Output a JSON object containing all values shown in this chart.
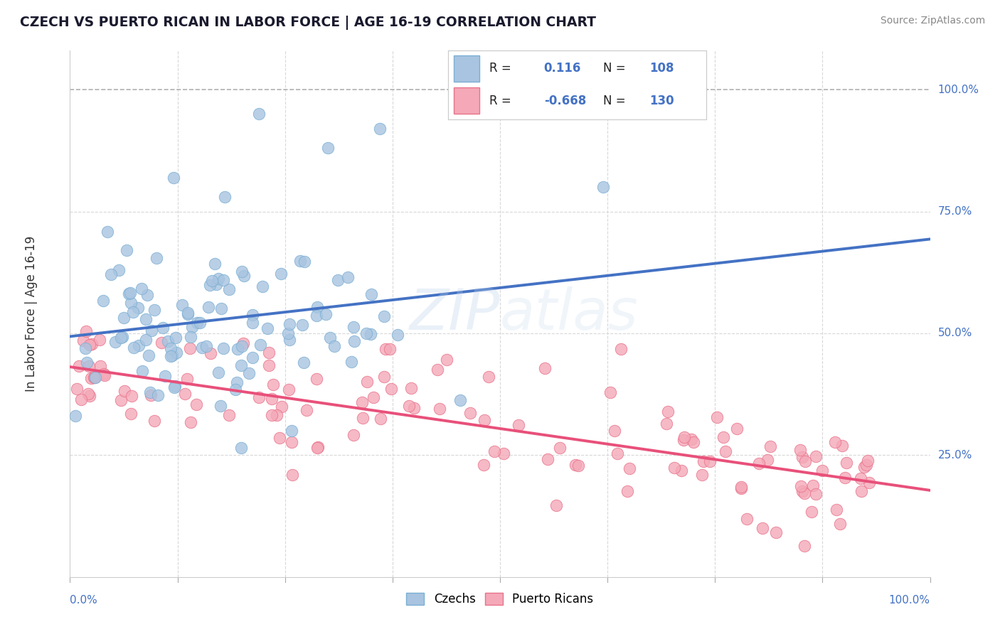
{
  "title": "CZECH VS PUERTO RICAN IN LABOR FORCE | AGE 16-19 CORRELATION CHART",
  "source": "Source: ZipAtlas.com",
  "ylabel": "In Labor Force | Age 16-19",
  "czech_color": "#a8c4e0",
  "puerto_rican_color": "#f4a8b8",
  "czech_edge": "#7bafd4",
  "puerto_rican_edge": "#e8748a",
  "trend_blue": "#4472c4",
  "trend_pink": "#e8507a",
  "trend_dashed_color": "#b0b0b0",
  "background": "#ffffff",
  "grid_color": "#d8d8d8",
  "r1": 0.116,
  "r2": -0.668,
  "n1": 108,
  "n2": 130,
  "watermark_color": "#c8d8e8",
  "legend_text_color": "#222222",
  "axis_label_color": "#4472c4",
  "title_color": "#1a1a2e",
  "source_color": "#888888"
}
